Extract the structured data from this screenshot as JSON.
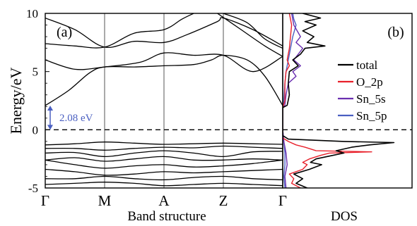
{
  "chart_data": [
    {
      "type": "line",
      "title": "",
      "panel_label": "(a)",
      "xlabel": "Band structure",
      "ylabel": "Energy/eV",
      "ylim": [
        -5,
        10
      ],
      "yticks": [
        -5,
        0,
        5,
        10
      ],
      "kpoints": [
        "Γ",
        "M",
        "A",
        "Z",
        "Γ"
      ],
      "kpoint_positions": [
        0,
        1,
        2,
        3,
        4
      ],
      "fermi_level": 0,
      "band_gap": {
        "value": 2.08,
        "label": "2.08 eV",
        "from": 0,
        "to": 2.08
      },
      "series": [
        {
          "values": [
            [
              0,
              2.08
            ],
            [
              0.4,
              3.4
            ],
            [
              0.75,
              4.9
            ],
            [
              1,
              5.4
            ],
            [
              1.5,
              5.4
            ],
            [
              2,
              5.5
            ],
            [
              2.5,
              5.6
            ],
            [
              2.8,
              6.0
            ],
            [
              3,
              6.4
            ],
            [
              3.4,
              6.0
            ],
            [
              3.7,
              4.6
            ],
            [
              4,
              2.08
            ]
          ]
        },
        {
          "values": [
            [
              0,
              6.0
            ],
            [
              0.5,
              5.2
            ],
            [
              1,
              5.4
            ],
            [
              1.6,
              5.8
            ],
            [
              2,
              6.6
            ],
            [
              2.5,
              6.4
            ],
            [
              3,
              6.4
            ],
            [
              3.5,
              5.0
            ],
            [
              4,
              6.3
            ]
          ]
        },
        {
          "values": [
            [
              0,
              7.4
            ],
            [
              0.5,
              7.2
            ],
            [
              1,
              7.1
            ],
            [
              1.5,
              8.3
            ],
            [
              2,
              8.6
            ],
            [
              2.3,
              9.5
            ],
            [
              2.5,
              10
            ]
          ]
        },
        {
          "values": [
            [
              0,
              9.6
            ],
            [
              0.5,
              8.6
            ],
            [
              1,
              7.1
            ],
            [
              1.5,
              7.6
            ],
            [
              2,
              7.5
            ],
            [
              2.4,
              8.2
            ],
            [
              2.9,
              9.3
            ],
            [
              3,
              9.6
            ],
            [
              3.5,
              8.6
            ],
            [
              4,
              7.2
            ]
          ]
        },
        {
          "values": [
            [
              3,
              10
            ],
            [
              3.4,
              9.2
            ],
            [
              3.7,
              7.8
            ],
            [
              4,
              7.0
            ]
          ]
        },
        {
          "values": [
            [
              2.9,
              10
            ],
            [
              3.3,
              8.6
            ],
            [
              3.7,
              7.2
            ],
            [
              4,
              6.3
            ]
          ]
        },
        {
          "values": [
            [
              0,
              -1.3
            ],
            [
              0.5,
              -1.2
            ],
            [
              1,
              -1.05
            ],
            [
              1.5,
              -1.15
            ],
            [
              2,
              -1.25
            ],
            [
              2.5,
              -1.2
            ],
            [
              3,
              -1.15
            ],
            [
              3.5,
              -1.2
            ],
            [
              4,
              -1.25
            ]
          ]
        },
        {
          "values": [
            [
              0,
              -1.6
            ],
            [
              0.5,
              -1.6
            ],
            [
              1,
              -1.75
            ],
            [
              1.5,
              -1.6
            ],
            [
              2,
              -1.5
            ],
            [
              2.5,
              -1.55
            ],
            [
              3,
              -1.4
            ],
            [
              3.5,
              -1.5
            ],
            [
              4,
              -1.6
            ]
          ]
        },
        {
          "values": [
            [
              0,
              -2.0
            ],
            [
              0.5,
              -1.95
            ],
            [
              1,
              -2.3
            ],
            [
              1.5,
              -2.0
            ],
            [
              2,
              -1.8
            ],
            [
              2.5,
              -2.0
            ],
            [
              3,
              -2.3
            ],
            [
              3.5,
              -1.9
            ],
            [
              4,
              -1.85
            ]
          ]
        },
        {
          "values": [
            [
              0,
              -2.6
            ],
            [
              0.5,
              -2.4
            ],
            [
              1,
              -2.7
            ],
            [
              1.5,
              -2.5
            ],
            [
              2,
              -2.3
            ],
            [
              2.5,
              -2.6
            ],
            [
              3,
              -2.6
            ],
            [
              3.5,
              -2.5
            ],
            [
              4,
              -2.6
            ]
          ]
        },
        {
          "values": [
            [
              0,
              -2.6
            ],
            [
              0.5,
              -3.0
            ],
            [
              1,
              -3.3
            ],
            [
              1.5,
              -3.1
            ],
            [
              2,
              -3.0
            ],
            [
              2.5,
              -3.2
            ],
            [
              3,
              -3.1
            ],
            [
              3.5,
              -2.9
            ],
            [
              4,
              -2.6
            ]
          ]
        },
        {
          "values": [
            [
              0,
              -3.4
            ],
            [
              0.5,
              -3.6
            ],
            [
              1,
              -3.9
            ],
            [
              1.5,
              -3.8
            ],
            [
              2,
              -3.6
            ],
            [
              2.5,
              -3.7
            ],
            [
              3,
              -3.6
            ],
            [
              3.5,
              -3.5
            ],
            [
              4,
              -3.4
            ]
          ]
        },
        {
          "values": [
            [
              0,
              -4.2
            ],
            [
              0.5,
              -4.2
            ],
            [
              1,
              -4.0
            ],
            [
              1.5,
              -4.2
            ],
            [
              2,
              -4.3
            ],
            [
              2.5,
              -4.1
            ],
            [
              3,
              -4.0
            ],
            [
              3.5,
              -4.2
            ],
            [
              4,
              -4.3
            ]
          ]
        },
        {
          "values": [
            [
              0,
              -4.7
            ],
            [
              0.5,
              -4.6
            ],
            [
              1,
              -4.5
            ],
            [
              1.5,
              -4.6
            ],
            [
              2,
              -4.8
            ],
            [
              2.5,
              -4.7
            ],
            [
              3,
              -4.6
            ],
            [
              3.5,
              -4.7
            ],
            [
              4,
              -4.8
            ]
          ]
        }
      ]
    },
    {
      "type": "line",
      "title": "",
      "panel_label": "(b)",
      "xlabel": "DOS",
      "ylabel": "",
      "ylim": [
        -5,
        10
      ],
      "legend_position": "right",
      "series": [
        {
          "name": "total",
          "color": "#000000",
          "points": [
            [
              -5,
              0.22
            ],
            [
              -4.6,
              0.12
            ],
            [
              -4.2,
              0.18
            ],
            [
              -3.8,
              0.1
            ],
            [
              -3.4,
              0.24
            ],
            [
              -3.0,
              0.35
            ],
            [
              -2.8,
              0.25
            ],
            [
              -2.5,
              0.3
            ],
            [
              -2.2,
              0.45
            ],
            [
              -2.0,
              0.55
            ],
            [
              -1.8,
              0.48
            ],
            [
              -1.5,
              0.62
            ],
            [
              -1.3,
              0.78
            ],
            [
              -1.1,
              1.0
            ],
            [
              -1.0,
              0.55
            ],
            [
              -0.8,
              0.05
            ],
            [
              -0.5,
              0.0
            ],
            [
              0,
              0
            ],
            [
              1.9,
              0
            ],
            [
              2.1,
              0.04
            ],
            [
              3,
              0.06
            ],
            [
              4,
              0.05
            ],
            [
              5,
              0.06
            ],
            [
              5.5,
              0.14
            ],
            [
              6,
              0.09
            ],
            [
              6.5,
              0.16
            ],
            [
              7,
              0.2
            ],
            [
              7.2,
              0.38
            ],
            [
              7.5,
              0.22
            ],
            [
              8,
              0.28
            ],
            [
              8.5,
              0.18
            ],
            [
              9,
              0.3
            ],
            [
              9.3,
              0.2
            ],
            [
              9.6,
              0.34
            ],
            [
              10,
              0.18
            ]
          ]
        },
        {
          "name": "O_2p",
          "color": "#e8202a",
          "points": [
            [
              -5,
              0.16
            ],
            [
              -4.6,
              0.08
            ],
            [
              -4.2,
              0.1
            ],
            [
              -3.8,
              0.06
            ],
            [
              -3.4,
              0.18
            ],
            [
              -3.0,
              0.22
            ],
            [
              -2.8,
              0.18
            ],
            [
              -2.5,
              0.24
            ],
            [
              -2.2,
              0.34
            ],
            [
              -2.0,
              0.42
            ],
            [
              -1.9,
              0.8
            ],
            [
              -1.8,
              0.3
            ],
            [
              -1.5,
              0.2
            ],
            [
              -1.3,
              0.12
            ],
            [
              -1.0,
              0.05
            ],
            [
              -0.7,
              0.0
            ],
            [
              0,
              0
            ],
            [
              1.9,
              0
            ],
            [
              2.5,
              0.02
            ],
            [
              4,
              0.02
            ],
            [
              5,
              0.03
            ],
            [
              5.5,
              0.06
            ],
            [
              6,
              0.04
            ],
            [
              7,
              0.06
            ],
            [
              8,
              0.07
            ],
            [
              9,
              0.08
            ],
            [
              10,
              0.06
            ]
          ]
        },
        {
          "name": "Sn_5s",
          "color": "#6a2fb0",
          "points": [
            [
              -5,
              0.03
            ],
            [
              -4,
              0.02
            ],
            [
              -3,
              0.04
            ],
            [
              -2,
              0.03
            ],
            [
              -1,
              0.01
            ],
            [
              0,
              0
            ],
            [
              1.9,
              0
            ],
            [
              2.1,
              0.02
            ],
            [
              3,
              0.03
            ],
            [
              4,
              0.05
            ],
            [
              4.6,
              0.12
            ],
            [
              5,
              0.09
            ],
            [
              5.5,
              0.16
            ],
            [
              6,
              0.1
            ],
            [
              6.5,
              0.14
            ],
            [
              7,
              0.18
            ],
            [
              7.5,
              0.12
            ],
            [
              8,
              0.16
            ],
            [
              9,
              0.1
            ],
            [
              10,
              0.08
            ]
          ]
        },
        {
          "name": "Sn_5p",
          "color": "#4a5fc1",
          "points": [
            [
              -5,
              0.02
            ],
            [
              -4,
              0.01
            ],
            [
              -3,
              0.02
            ],
            [
              -2,
              0.02
            ],
            [
              -1,
              0.01
            ],
            [
              0,
              0
            ],
            [
              1.9,
              0
            ],
            [
              2.5,
              0.01
            ],
            [
              4,
              0.02
            ],
            [
              5,
              0.03
            ],
            [
              6,
              0.05
            ],
            [
              7,
              0.07
            ],
            [
              8,
              0.09
            ],
            [
              9,
              0.12
            ],
            [
              9.5,
              0.1
            ],
            [
              10,
              0.09
            ]
          ]
        }
      ]
    }
  ]
}
